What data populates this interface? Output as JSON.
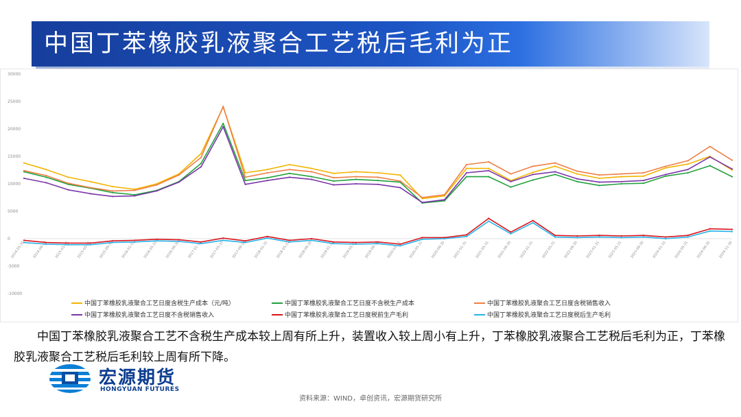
{
  "slide": {
    "title": "中国丁苯橡胶乳液聚合工艺税后毛利为正",
    "description": "中国丁苯橡胶乳液聚合工艺不含税生产成本较上周有所上升，装置收入较上周小有上升，丁苯橡胶乳液聚合工艺税后毛利为正，丁苯橡胶乳液聚合工艺税后毛利较上周有所下降。",
    "source": "资料来源：WIND，卓创资讯，宏源期货研究所"
  },
  "logo": {
    "name_cn": "宏源期货",
    "name_en": "HONGYUAN FUTURES"
  },
  "colors": {
    "banner": "#1d55c4",
    "text": "#111111"
  },
  "chart_data": {
    "type": "line",
    "title": "",
    "xlabel": "",
    "ylabel": "",
    "ylim": [
      -10000,
      30000
    ],
    "yticks": [
      "30000",
      "25000",
      "20000",
      "15000",
      "10000",
      "5000",
      "0",
      "-5000",
      "-10000"
    ],
    "grid": false,
    "legend_position": "bottom",
    "x": [
      "2014-05-30",
      "2014-09-30",
      "2015-01-31",
      "2015-05-31",
      "2015-09-30",
      "2016-01-31",
      "2016-05-31",
      "2016-09-30",
      "2017-01-31",
      "2017-05-31",
      "2017-09-30",
      "2018-01-31",
      "2018-05-31",
      "2018-09-30",
      "2019-01-31",
      "2019-05-31",
      "2019-09-30",
      "2020-01-31",
      "2020-05-31",
      "2020-09-30",
      "2021-01-31",
      "2021-05-31",
      "2021-09-30",
      "2022-01-31",
      "2022-05-31",
      "2022-09-30",
      "2023-01-31",
      "2023-05-31",
      "2023-09-30",
      "2024-01-31",
      "2024-05-31",
      "2024-09-30",
      "2024-11-30"
    ],
    "series": [
      {
        "name": "中国丁苯橡胶乳液聚合工艺日度含税生产成本（元/吨）",
        "color": "#f2b400",
        "values": [
          13800,
          12600,
          11200,
          10400,
          9500,
          9000,
          10000,
          11800,
          15500,
          24000,
          12000,
          12600,
          13500,
          12800,
          11900,
          12200,
          12000,
          11600,
          7300,
          7800,
          12800,
          12800,
          10600,
          12100,
          13200,
          11800,
          11000,
          11300,
          11400,
          12900,
          13600,
          15000,
          12500
        ]
      },
      {
        "name": "中国丁苯橡胶乳液聚合工艺日度不含税生产成本",
        "color": "#21a03c",
        "values": [
          12200,
          11200,
          9900,
          9200,
          8400,
          8000,
          8800,
          10400,
          13700,
          21000,
          10600,
          11100,
          11900,
          11300,
          10500,
          10800,
          10600,
          10300,
          6500,
          6900,
          11300,
          11300,
          9400,
          10700,
          11700,
          10400,
          9700,
          10000,
          10100,
          11400,
          12000,
          13300,
          11300
        ]
      },
      {
        "name": "中国丁苯橡胶乳液聚合工艺日度含税销售收入",
        "color": "#ee7f45",
        "values": [
          12400,
          11500,
          10100,
          9300,
          8700,
          8800,
          9800,
          11600,
          14800,
          24100,
          11200,
          12000,
          12600,
          12200,
          11100,
          11300,
          11200,
          10500,
          7500,
          8000,
          13500,
          14000,
          11800,
          13200,
          13800,
          12300,
          11600,
          11800,
          12000,
          13200,
          14200,
          16800,
          14300
        ]
      },
      {
        "name": "中国丁苯橡胶乳液聚合工艺日度不含税销售收入",
        "color": "#7b35a8",
        "values": [
          11000,
          10200,
          8900,
          8200,
          7700,
          7800,
          8700,
          10300,
          13100,
          20400,
          9900,
          10600,
          11200,
          10800,
          9800,
          10000,
          9900,
          9300,
          6600,
          7100,
          12000,
          12400,
          10400,
          11700,
          12200,
          10900,
          10300,
          10400,
          10600,
          11700,
          12600,
          14900,
          12700
        ]
      },
      {
        "name": "中国丁苯橡胶乳液聚合工艺日度税前生产毛利",
        "color": "#d8141c",
        "values": [
          -300,
          -700,
          -800,
          -800,
          -400,
          -300,
          -100,
          -200,
          -600,
          100,
          -400,
          400,
          -300,
          0,
          -600,
          -700,
          -600,
          -1000,
          200,
          200,
          700,
          3700,
          1200,
          3300,
          600,
          500,
          600,
          500,
          600,
          300,
          600,
          1800,
          1700
        ]
      },
      {
        "name": "中国丁苯橡胶乳液聚合工艺日度税后生产毛利",
        "color": "#29b0e6",
        "values": [
          -700,
          -1000,
          -1100,
          -1100,
          -700,
          -600,
          -400,
          -500,
          -900,
          -300,
          -700,
          100,
          -600,
          -300,
          -900,
          -1000,
          -900,
          -1300,
          -100,
          0,
          400,
          3200,
          900,
          2900,
          300,
          200,
          300,
          200,
          300,
          0,
          300,
          1400,
          1300
        ]
      }
    ]
  }
}
